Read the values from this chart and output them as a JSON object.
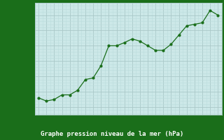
{
  "x": [
    0,
    1,
    2,
    3,
    4,
    5,
    6,
    7,
    8,
    9,
    10,
    11,
    12,
    13,
    14,
    15,
    16,
    17,
    18,
    19,
    20,
    21,
    22,
    23
  ],
  "y": [
    1022.6,
    1022.4,
    1022.5,
    1022.8,
    1022.8,
    1023.1,
    1023.8,
    1023.9,
    1024.7,
    1026.0,
    1026.0,
    1026.2,
    1026.45,
    1026.3,
    1026.0,
    1025.7,
    1025.7,
    1026.1,
    1026.7,
    1027.3,
    1027.4,
    1027.5,
    1028.3,
    1028.0
  ],
  "line_color": "#1a6e1a",
  "marker_color": "#1a6e1a",
  "bg_color": "#cce8e8",
  "plot_bg_color": "#cce8e8",
  "grid_color_major": "#aac8c8",
  "grid_color_minor": "#bbdddd",
  "ylabel_ticks": [
    1022,
    1023,
    1024,
    1025,
    1026,
    1027,
    1028
  ],
  "xlabel_label": "Graphe pression niveau de la mer (hPa)",
  "xlim": [
    -0.5,
    23.5
  ],
  "ylim": [
    1021.5,
    1028.8
  ],
  "label_color": "#1a6e1a",
  "tick_color": "#1a6e1a",
  "footer_bg": "#1a6e1a",
  "footer_fg": "#ffffff"
}
